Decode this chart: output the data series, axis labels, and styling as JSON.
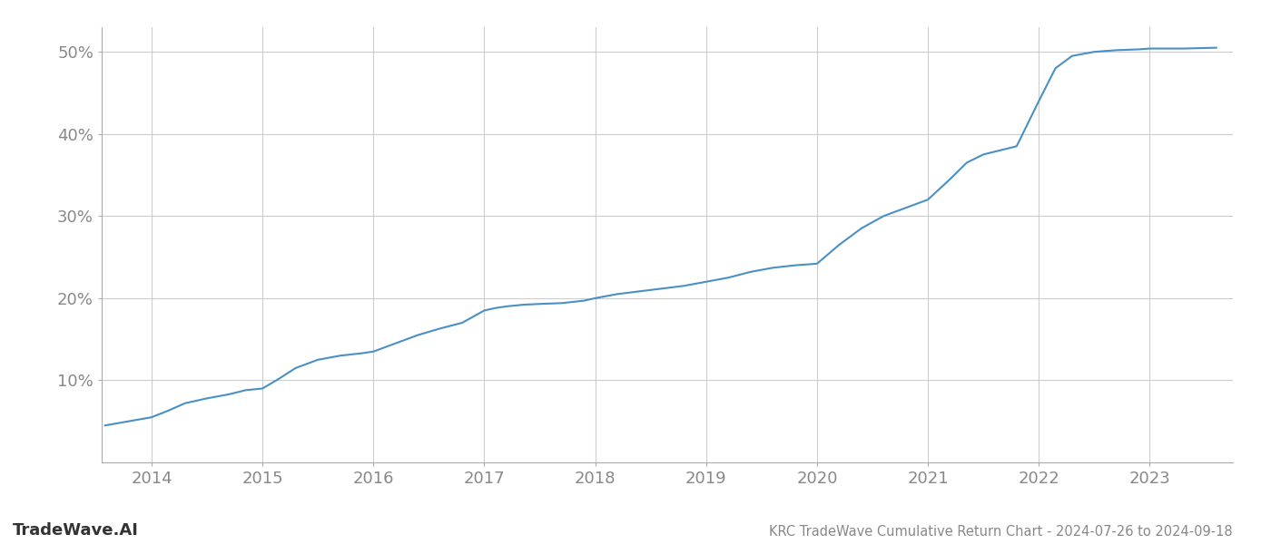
{
  "title": "KRC TradeWave Cumulative Return Chart - 2024-07-26 to 2024-09-18",
  "watermark": "TradeWave.AI",
  "line_color": "#4a90c4",
  "line_width": 1.5,
  "background_color": "#ffffff",
  "grid_color": "#cccccc",
  "x_years": [
    2014,
    2015,
    2016,
    2017,
    2018,
    2019,
    2020,
    2021,
    2022,
    2023
  ],
  "x_data": [
    2013.58,
    2014.0,
    2014.15,
    2014.3,
    2014.5,
    2014.7,
    2014.85,
    2015.0,
    2015.15,
    2015.3,
    2015.5,
    2015.7,
    2015.9,
    2016.0,
    2016.2,
    2016.4,
    2016.6,
    2016.8,
    2017.0,
    2017.1,
    2017.2,
    2017.35,
    2017.5,
    2017.7,
    2017.9,
    2018.0,
    2018.2,
    2018.5,
    2018.8,
    2019.0,
    2019.2,
    2019.4,
    2019.6,
    2019.8,
    2020.0,
    2020.2,
    2020.4,
    2020.6,
    2020.8,
    2021.0,
    2021.2,
    2021.35,
    2021.5,
    2021.65,
    2021.8,
    2022.0,
    2022.15,
    2022.3,
    2022.5,
    2022.7,
    2022.9,
    2023.0,
    2023.3,
    2023.6
  ],
  "y_data": [
    4.5,
    5.5,
    6.3,
    7.2,
    7.8,
    8.3,
    8.8,
    9.0,
    10.2,
    11.5,
    12.5,
    13.0,
    13.3,
    13.5,
    14.5,
    15.5,
    16.3,
    17.0,
    18.5,
    18.8,
    19.0,
    19.2,
    19.3,
    19.4,
    19.7,
    20.0,
    20.5,
    21.0,
    21.5,
    22.0,
    22.5,
    23.2,
    23.7,
    24.0,
    24.2,
    26.5,
    28.5,
    30.0,
    31.0,
    32.0,
    34.5,
    36.5,
    37.5,
    38.0,
    38.5,
    44.0,
    48.0,
    49.5,
    50.0,
    50.2,
    50.3,
    50.4,
    50.4,
    50.5
  ],
  "ylim": [
    0,
    53
  ],
  "yticks": [
    10,
    20,
    30,
    40,
    50
  ],
  "ytick_labels": [
    "10%",
    "20%",
    "30%",
    "40%",
    "50%"
  ],
  "title_fontsize": 10.5,
  "tick_fontsize": 13,
  "watermark_fontsize": 13
}
